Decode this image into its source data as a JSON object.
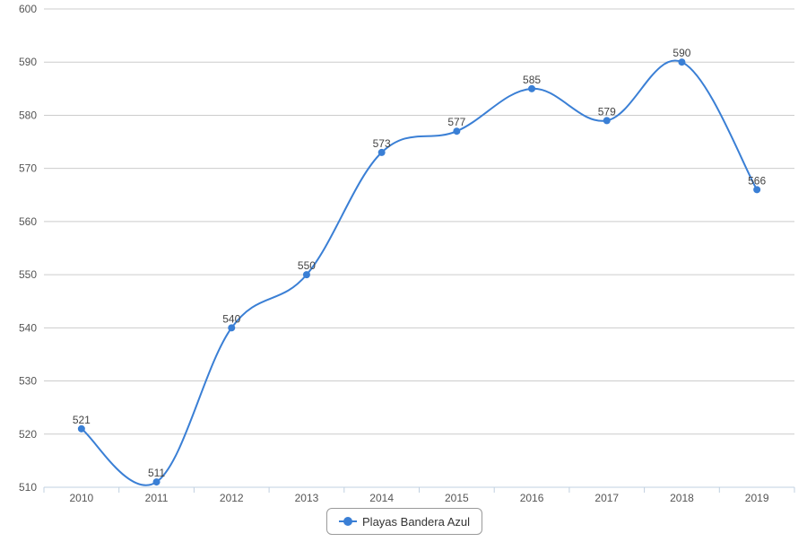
{
  "chart_data": {
    "type": "line",
    "categories": [
      "2010",
      "2011",
      "2012",
      "2013",
      "2014",
      "2015",
      "2016",
      "2017",
      "2018",
      "2019"
    ],
    "series": [
      {
        "name": "Playas Bandera Azul",
        "values": [
          521,
          511,
          540,
          550,
          573,
          577,
          585,
          579,
          590,
          566
        ],
        "color": "#3a7fd5"
      }
    ],
    "title": "",
    "xlabel": "",
    "ylabel": "",
    "ylim": [
      510,
      600
    ],
    "yticks": [
      510,
      520,
      530,
      540,
      550,
      560,
      570,
      580,
      590,
      600
    ],
    "grid": true,
    "legend_position": "bottom-center",
    "data_labels": true,
    "smooth": true
  }
}
